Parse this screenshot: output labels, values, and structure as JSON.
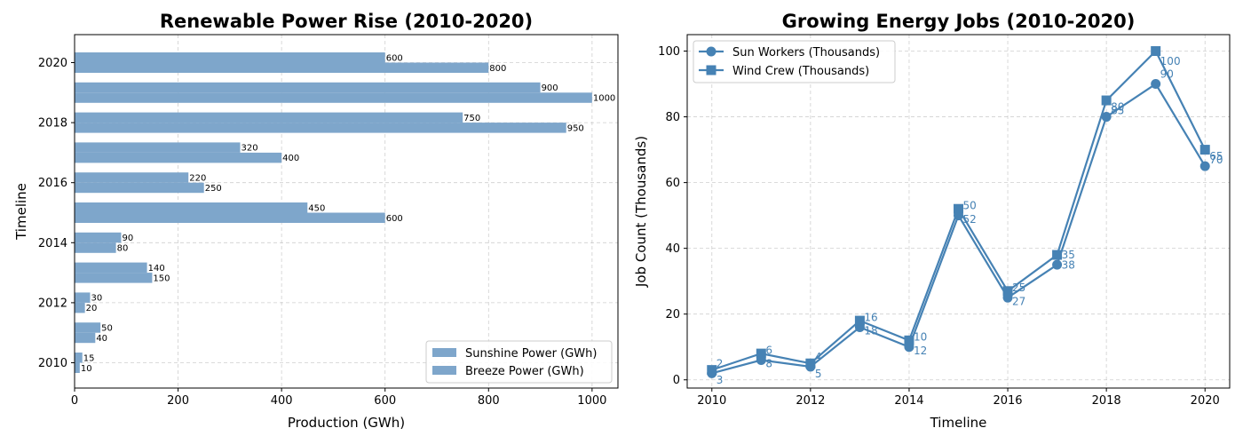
{
  "colors": {
    "bar": "#7ea6cb",
    "line": "#4682b4"
  },
  "chart_data": [
    {
      "type": "bar",
      "orientation": "horizontal",
      "title": "Renewable Power Rise (2010-2020)",
      "xlabel": "Production (GWh)",
      "ylabel": "Timeline",
      "categories": [
        2010,
        2011,
        2012,
        2013,
        2014,
        2015,
        2016,
        2017,
        2018,
        2019,
        2020
      ],
      "ytick_labels": [
        "2010",
        "2012",
        "2014",
        "2016",
        "2018",
        "2020"
      ],
      "xticks": [
        "0",
        "200",
        "400",
        "600",
        "800",
        "1000"
      ],
      "xlim": [
        0,
        1050
      ],
      "grid": true,
      "legend_position": "lower right",
      "series": [
        {
          "name": "Sunshine Power (GWh)",
          "values": [
            15,
            50,
            30,
            140,
            90,
            450,
            220,
            320,
            750,
            900,
            600
          ]
        },
        {
          "name": "Breeze Power (GWh)",
          "values": [
            10,
            40,
            20,
            150,
            80,
            600,
            250,
            400,
            950,
            1000,
            800
          ]
        }
      ]
    },
    {
      "type": "line",
      "title": "Growing Energy Jobs (2010-2020)",
      "xlabel": "Timeline",
      "ylabel": "Job Count (Thousands)",
      "x": [
        2010,
        2011,
        2012,
        2013,
        2014,
        2015,
        2016,
        2017,
        2018,
        2019,
        2020
      ],
      "xticks": [
        "2010",
        "2012",
        "2014",
        "2016",
        "2018",
        "2020"
      ],
      "yticks": [
        "0",
        "20",
        "40",
        "60",
        "80",
        "100"
      ],
      "xlim": [
        2009.5,
        2020.5
      ],
      "ylim": [
        -2.5,
        105
      ],
      "grid": true,
      "legend_position": "upper left",
      "series": [
        {
          "name": "Sun Workers (Thousands)",
          "marker": "circle",
          "values": [
            2,
            6,
            4,
            16,
            10,
            50,
            25,
            35,
            80,
            90,
            65
          ]
        },
        {
          "name": "Wind Crew (Thousands)",
          "marker": "square",
          "values": [
            3,
            8,
            5,
            18,
            12,
            52,
            27,
            38,
            85,
            100,
            70
          ]
        }
      ]
    }
  ]
}
